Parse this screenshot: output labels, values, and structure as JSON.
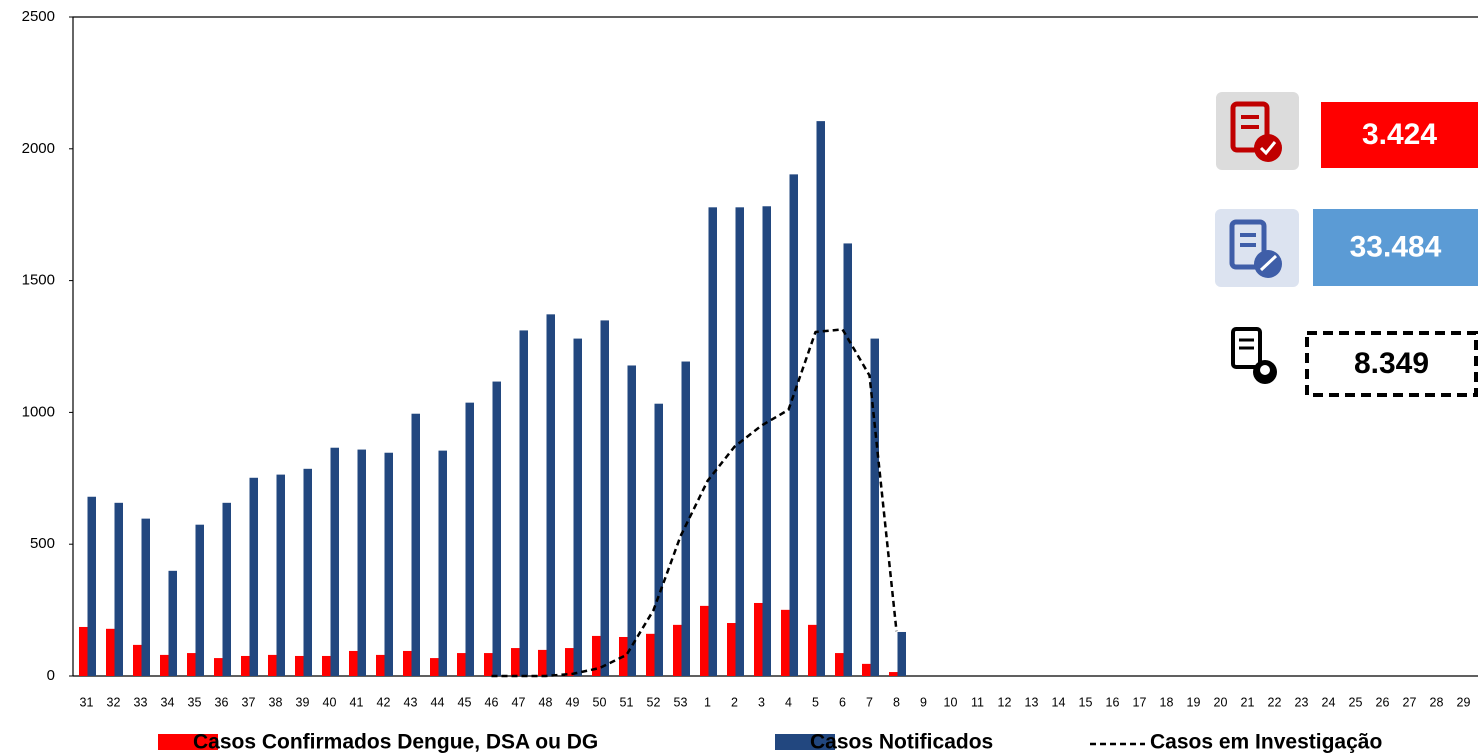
{
  "chart_data": {
    "type": "bar",
    "categories": [
      "31",
      "32",
      "33",
      "34",
      "35",
      "36",
      "37",
      "38",
      "39",
      "40",
      "41",
      "42",
      "43",
      "44",
      "45",
      "46",
      "47",
      "48",
      "49",
      "50",
      "51",
      "52",
      "53",
      "1",
      "2",
      "3",
      "4",
      "5",
      "6",
      "7",
      "8",
      "9",
      "10",
      "11",
      "12",
      "13",
      "14",
      "15",
      "16",
      "17",
      "18",
      "19",
      "20",
      "21",
      "22",
      "23",
      "24",
      "25",
      "26",
      "27",
      "28",
      "29"
    ],
    "series": [
      {
        "name": "Casos Confirmados Dengue, DSA ou DG",
        "type": "bar",
        "color": "#ff0000",
        "values": [
          186,
          179,
          118,
          80,
          87,
          68,
          76,
          80,
          76,
          76,
          95,
          80,
          95,
          68,
          87,
          87,
          106,
          99,
          106,
          152,
          148,
          160,
          194,
          266,
          201,
          277,
          251,
          194,
          87,
          46,
          15,
          null,
          null,
          null,
          null,
          null,
          null,
          null,
          null,
          null,
          null,
          null,
          null,
          null,
          null,
          null,
          null,
          null,
          null,
          null,
          null,
          null
        ]
      },
      {
        "name": "Casos Notificados",
        "type": "bar",
        "color": "#22477f",
        "values": [
          680,
          657,
          597,
          399,
          574,
          657,
          752,
          764,
          786,
          866,
          859,
          847,
          995,
          855,
          1037,
          1117,
          1311,
          1372,
          1280,
          1349,
          1178,
          1033,
          1193,
          1778,
          1778,
          1782,
          1903,
          2105,
          1641,
          1280,
          167,
          null,
          null,
          null,
          null,
          null,
          null,
          null,
          null,
          null,
          null,
          null,
          null,
          null,
          null,
          null,
          null,
          null,
          null,
          null,
          null,
          null
        ]
      },
      {
        "name": "Casos em Investigação",
        "type": "line",
        "color": "#000000",
        "line_style": "dashed",
        "values": [
          null,
          null,
          null,
          null,
          null,
          null,
          null,
          null,
          null,
          null,
          null,
          null,
          null,
          null,
          null,
          0,
          0,
          0,
          8,
          30,
          80,
          250,
          530,
          740,
          870,
          950,
          1010,
          1305,
          1315,
          1140,
          170,
          null,
          null,
          null,
          null,
          null,
          null,
          null,
          null,
          null,
          null,
          null,
          null,
          null,
          null,
          null,
          null,
          null,
          null,
          null,
          null,
          null
        ]
      }
    ],
    "ylim": [
      0,
      2500
    ],
    "yticks": [
      0,
      500,
      1000,
      1500,
      2000,
      2500
    ],
    "grid": false,
    "annotations": [
      {
        "text": "3.424",
        "color": "#ff0000"
      },
      {
        "text": "33.484",
        "color": "#5b9bd5"
      },
      {
        "text": "8.349",
        "color": "#ffffff"
      }
    ]
  }
}
